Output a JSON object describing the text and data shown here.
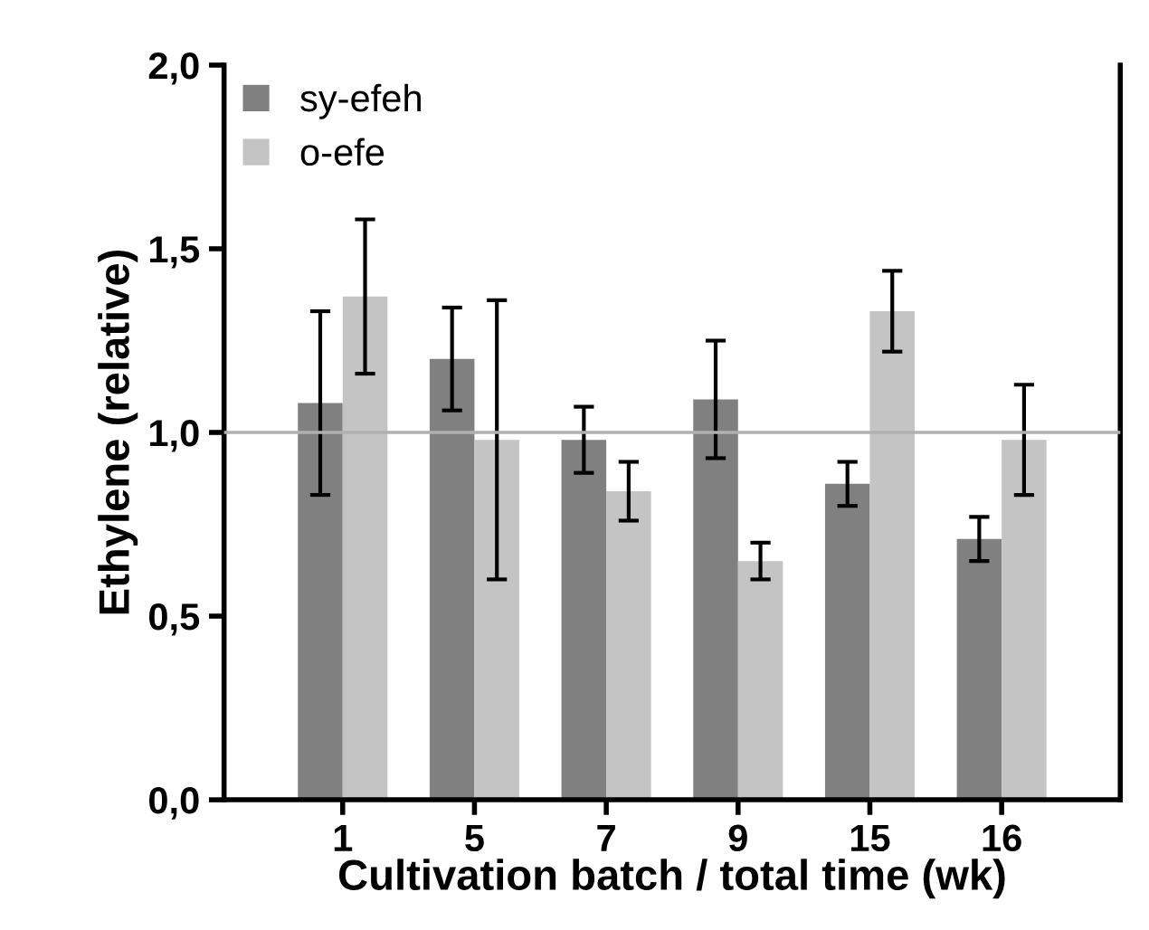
{
  "chart_data": {
    "type": "bar",
    "xlabel": "Cultivation batch / total time (wk)",
    "ylabel": "Ethylene (relative)",
    "categories": [
      "1",
      "5",
      "7",
      "9",
      "15",
      "16"
    ],
    "series": [
      {
        "name": "sy-efeh",
        "color": "#808080",
        "values": [
          1.08,
          1.2,
          0.98,
          1.09,
          0.86,
          0.71
        ],
        "errors": [
          0.25,
          0.14,
          0.09,
          0.16,
          0.06,
          0.06
        ]
      },
      {
        "name": "o-efe",
        "color": "#c4c4c4",
        "values": [
          1.37,
          0.98,
          0.84,
          0.65,
          1.33,
          0.98
        ],
        "errors": [
          0.21,
          0.38,
          0.08,
          0.05,
          0.11,
          0.15
        ]
      }
    ],
    "ylim": [
      0,
      2
    ],
    "yticks": [
      {
        "value": 0,
        "label": "0,0"
      },
      {
        "value": 0.5,
        "label": "0,5"
      },
      {
        "value": 1,
        "label": "1,0"
      },
      {
        "value": 1.5,
        "label": "1,5"
      },
      {
        "value": 2,
        "label": "2,0"
      }
    ],
    "ref_lines": [
      {
        "axis": "y",
        "value": 1,
        "color": "#b0b0b0"
      }
    ],
    "legend": "top left",
    "grid": false
  }
}
